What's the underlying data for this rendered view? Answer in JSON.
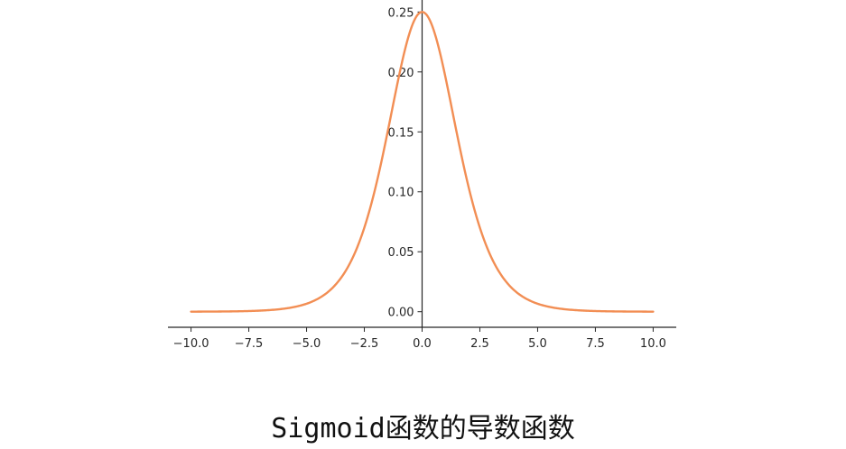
{
  "chart_data": {
    "type": "line",
    "function": "sigmoid-derivative",
    "x_range": [
      -10,
      10
    ],
    "sample_count": 401,
    "xlim": [
      -11,
      11
    ],
    "ylim": [
      -0.013,
      0.26
    ],
    "x_ticks": [
      -10.0,
      -7.5,
      -5.0,
      -2.5,
      0.0,
      2.5,
      5.0,
      7.5,
      10.0
    ],
    "x_tick_labels": [
      "−10.0",
      "−7.5",
      "−5.0",
      "−2.5",
      "0.0",
      "2.5",
      "5.0",
      "7.5",
      "10.0"
    ],
    "y_ticks": [
      0.0,
      0.05,
      0.1,
      0.15,
      0.2,
      0.25
    ],
    "y_tick_labels": [
      "0.00",
      "0.05",
      "0.10",
      "0.15",
      "0.20",
      "0.25"
    ],
    "spines": "centered-at-origin",
    "grid": false,
    "series": [
      {
        "color": "#f28e54"
      }
    ]
  },
  "caption": "Sigmoid函数的导数函数"
}
